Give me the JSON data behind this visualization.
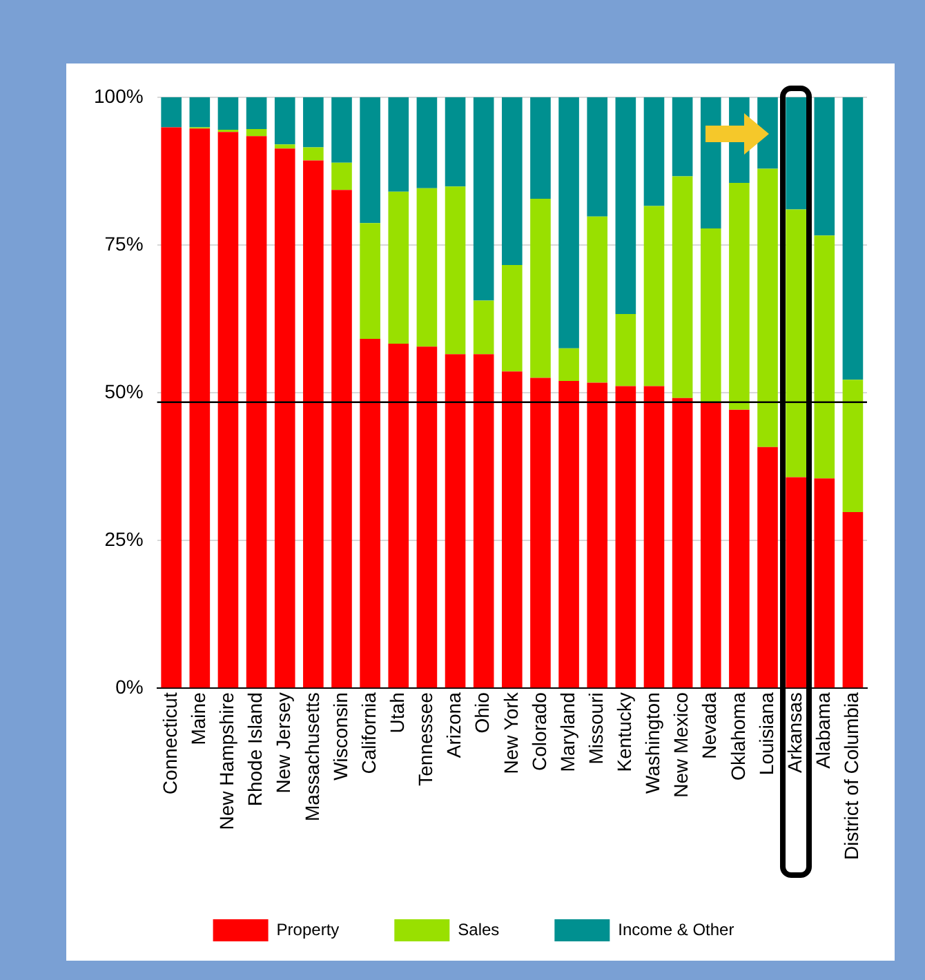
{
  "chart_data": {
    "type": "bar",
    "stacked": true,
    "categories": [
      "Connecticut",
      "Maine",
      "New Hampshire",
      "Rhode Island",
      "New Jersey",
      "Massachusetts",
      "Wisconsin",
      "California",
      "Utah",
      "Tennessee",
      "Arizona",
      "Ohio",
      "New York",
      "Colorado",
      "Maryland",
      "Missouri",
      "Kentucky",
      "Washington",
      "New Mexico",
      "Nevada",
      "Oklahoma",
      "Louisiana",
      "Arkansas",
      "Alabama",
      "District of Columbia"
    ],
    "series": [
      {
        "name": "Property",
        "color": "#ff0000",
        "values": [
          94.9,
          94.7,
          94.1,
          93.4,
          91.3,
          89.3,
          84.3,
          59.1,
          58.3,
          57.8,
          56.5,
          56.5,
          53.6,
          52.5,
          52.0,
          51.7,
          51.1,
          51.1,
          49.1,
          48.4,
          47.1,
          40.8,
          35.7,
          35.5,
          29.8
        ]
      },
      {
        "name": "Sales",
        "color": "#99e000",
        "values": [
          0,
          0.2,
          0.4,
          1.2,
          0.7,
          2.2,
          4.6,
          19.6,
          25.7,
          26.8,
          28.4,
          9.1,
          18.0,
          30.3,
          5.5,
          28.1,
          12.2,
          30.5,
          37.5,
          29.4,
          38.4,
          47.1,
          45.3,
          41.1,
          22.4
        ]
      },
      {
        "name": "Income & Other",
        "color": "#009090",
        "values": [
          5.1,
          5.1,
          5.5,
          5.4,
          8.0,
          8.5,
          11.1,
          21.3,
          16.0,
          15.4,
          15.1,
          34.4,
          28.4,
          17.2,
          42.5,
          20.2,
          36.7,
          18.4,
          13.4,
          22.2,
          14.5,
          12.1,
          19.0,
          23.4,
          47.8
        ]
      }
    ],
    "ylim": [
      0,
      100
    ],
    "yticks": [
      {
        "value": 0,
        "label": "0%"
      },
      {
        "value": 25,
        "label": "25%"
      },
      {
        "value": 50,
        "label": "50%"
      },
      {
        "value": 75,
        "label": "75%"
      },
      {
        "value": 100,
        "label": "100%"
      }
    ],
    "grid": "y",
    "legend": "bottom",
    "ref_lines": [
      {
        "axis": "y",
        "value": 48.4,
        "label": null,
        "color": "#000000"
      }
    ]
  }
}
